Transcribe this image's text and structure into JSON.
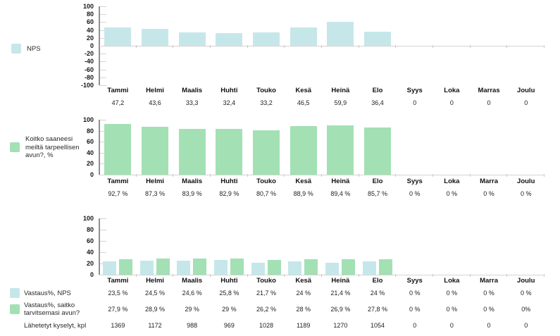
{
  "colors": {
    "bar_blue": "#c6e7e9",
    "bar_green": "#a3e0b4"
  },
  "chart_data": [
    {
      "type": "bar",
      "title": "",
      "legend": [
        "NPS"
      ],
      "legend_position": "left",
      "grid": false,
      "categories": [
        "Tammi",
        "Helmi",
        "Maalis",
        "Huhti",
        "Touko",
        "Kesä",
        "Heinä",
        "Elo",
        "Syys",
        "Loka",
        "Marras",
        "Joulu"
      ],
      "series": [
        {
          "name": "NPS",
          "color": "#c6e7e9",
          "values": [
            47.2,
            43.6,
            33.3,
            32.4,
            33.2,
            46.5,
            59.9,
            36.4,
            0,
            0,
            0,
            0
          ],
          "display": [
            "47,2",
            "43,6",
            "33,3",
            "32,4",
            "33,2",
            "46,5",
            "59,9",
            "36,4",
            "0",
            "0",
            "0",
            "0"
          ]
        }
      ],
      "ylim": [
        -100,
        100
      ],
      "yticks": [
        100,
        80,
        60,
        40,
        20,
        0,
        -20,
        -40,
        -60,
        -80,
        -100
      ]
    },
    {
      "type": "bar",
      "title": "",
      "legend": [
        "Koitko saaneesi meiltä tarpeellisen avun?, %"
      ],
      "legend_position": "left",
      "grid": false,
      "categories": [
        "Tammi",
        "Helmi",
        "Maalis",
        "Huhti",
        "Touko",
        "Kesä",
        "Heinä",
        "Elo",
        "Syys",
        "Loka",
        "Marra",
        "Joulu"
      ],
      "series": [
        {
          "name": "Koitko saaneesi meiltä tarpeellisen avun?, %",
          "color": "#a3e0b4",
          "values": [
            92.7,
            87.3,
            83.9,
            82.9,
            80.7,
            88.9,
            89.4,
            85.7,
            0,
            0,
            0,
            0
          ],
          "display": [
            "92,7 %",
            "87,3 %",
            "83,9 %",
            "82,9 %",
            "80,7 %",
            "88,9 %",
            "89,4 %",
            "85,7 %",
            "0 %",
            "0 %",
            "0 %",
            "0 %"
          ]
        }
      ],
      "ylim": [
        0,
        100
      ],
      "yticks": [
        100,
        80,
        60,
        40,
        20,
        0
      ]
    },
    {
      "type": "bar",
      "title": "",
      "legend": [
        "Vastaus%, NPS",
        "Vastaus%, saitko tarvitsemasi avun?"
      ],
      "legend_position": "left",
      "grid": false,
      "categories": [
        "Tammi",
        "Helmi",
        "Maalis",
        "Huhti",
        "Touko",
        "Kesä",
        "Heinä",
        "Elo",
        "Syys",
        "Loka",
        "Marra",
        "Joulu"
      ],
      "series": [
        {
          "name": "Vastaus%, NPS",
          "color": "#c6e7e9",
          "values": [
            23.5,
            24.5,
            24.6,
            25.8,
            21.7,
            24,
            21.4,
            24,
            0,
            0,
            0,
            0
          ],
          "display": [
            "23,5 %",
            "24,5 %",
            "24,6 %",
            "25,8 %",
            "21,7 %",
            "24 %",
            "21,4 %",
            "24 %",
            "0 %",
            "0 %",
            "0 %",
            "0 %"
          ]
        },
        {
          "name": "Vastaus%, saitko tarvitsemasi avun?",
          "color": "#a3e0b4",
          "values": [
            27.9,
            28.9,
            29,
            29,
            26.2,
            28,
            26.9,
            27.8,
            0,
            0,
            0,
            0
          ],
          "display": [
            "27,9 %",
            "28,9 %",
            "29 %",
            "29 %",
            "26,2 %",
            "28 %",
            "26,9 %",
            "27,8 %",
            "0 %",
            "0 %",
            "0 %",
            "0%"
          ]
        }
      ],
      "extra_rows": [
        {
          "name": "Lähetetyt kyselyt, kpl",
          "display": [
            "1369",
            "1172",
            "988",
            "969",
            "1028",
            "1189",
            "1270",
            "1054",
            "0",
            "0",
            "0",
            "0"
          ]
        }
      ],
      "ylim": [
        0,
        100
      ],
      "yticks": [
        100,
        80,
        60,
        40,
        20,
        0
      ]
    }
  ]
}
